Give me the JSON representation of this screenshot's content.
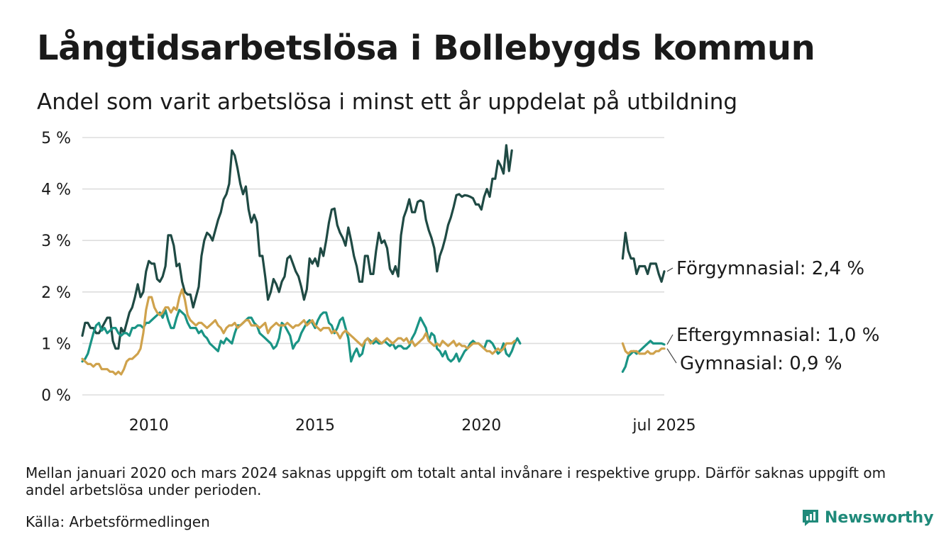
{
  "title": "Långtidsarbetslösa i Bollebygds kommun",
  "subtitle": "Andel som varit arbetslösa i minst ett år uppdelat på utbildning",
  "note": "Mellan januari 2020 och mars 2024 saknas uppgift om totalt antal invånare i respektive grupp. Därför saknas uppgift om andel arbetslösa under perioden.",
  "source": "Källa: Arbetsförmedlingen",
  "brand": "Newsworthy",
  "colors": {
    "forgymnasial": "#1f4a44",
    "eftergymnasial": "#1a9485",
    "gymnasial": "#cfa24c",
    "grid": "#dddddd"
  },
  "chart_data": {
    "type": "line",
    "x_unit": "month",
    "y_unit": "%",
    "ylim": [
      0,
      5
    ],
    "y_ticks": [
      0,
      1,
      2,
      3,
      4,
      5
    ],
    "y_tick_labels": [
      "0 %",
      "1 %",
      "2 %",
      "3 %",
      "4 %",
      "5 %"
    ],
    "x_ticks": [
      2010,
      2015,
      2020,
      2025.5
    ],
    "x_tick_labels": [
      "2010",
      "2015",
      "2020",
      "jul 2025"
    ],
    "grid": "horizontal",
    "series_start": 2008.0,
    "series_step": 0.08333,
    "gap": {
      "from": "2021-01",
      "to": "2024-03"
    },
    "series": [
      {
        "name": "Förgymnasial",
        "end_label": "Förgymnasial: 2,4 %",
        "color": "#1f4a44",
        "segments": [
          {
            "start": 2008.0,
            "values": [
              1.15,
              1.4,
              1.4,
              1.3,
              1.3,
              1.2,
              1.2,
              1.3,
              1.4,
              1.5,
              1.5,
              1.05,
              0.9,
              0.9,
              1.3,
              1.2,
              1.4,
              1.6,
              1.7,
              1.9,
              2.15,
              1.9,
              2.0,
              2.4,
              2.6,
              2.55,
              2.55,
              2.25,
              2.2,
              2.3,
              2.5,
              3.1,
              3.1,
              2.9,
              2.5,
              2.55,
              2.2,
              2.0,
              1.95,
              1.95,
              1.7,
              1.9,
              2.1,
              2.7,
              3.0,
              3.15,
              3.1,
              3.0,
              3.2,
              3.4,
              3.55,
              3.8,
              3.9,
              4.1,
              4.75,
              4.65,
              4.4,
              4.1,
              3.9,
              4.05,
              3.6,
              3.35,
              3.5,
              3.35,
              2.7,
              2.7,
              2.3,
              1.85,
              2.0,
              2.25,
              2.15,
              2.0,
              2.2,
              2.3,
              2.65,
              2.7,
              2.55,
              2.4,
              2.3,
              2.1,
              1.85,
              2.05,
              2.65,
              2.55,
              2.65,
              2.5,
              2.85,
              2.7,
              3.0,
              3.35,
              3.6,
              3.62,
              3.3,
              3.15,
              3.05,
              2.9,
              3.25,
              3.0,
              2.7,
              2.5,
              2.2,
              2.2,
              2.7,
              2.7,
              2.35,
              2.35,
              2.8,
              3.15,
              2.95,
              3.0,
              2.85,
              2.45,
              2.35,
              2.5,
              2.3,
              3.1,
              3.45,
              3.6,
              3.8,
              3.55,
              3.55,
              3.75,
              3.78,
              3.75,
              3.4,
              3.2,
              3.05,
              2.85,
              2.4,
              2.7,
              2.85,
              3.05,
              3.3,
              3.45,
              3.65,
              3.88,
              3.9,
              3.85,
              3.88,
              3.87,
              3.85,
              3.82,
              3.7,
              3.7,
              3.6,
              3.85,
              4.0,
              3.85,
              4.2,
              4.2,
              4.55,
              4.45,
              4.3,
              4.85,
              4.35,
              4.75
            ]
          },
          {
            "start": 2024.25,
            "values": [
              2.65,
              3.15,
              2.8,
              2.65,
              2.65,
              2.35,
              2.5,
              2.5,
              2.5,
              2.35,
              2.55,
              2.55,
              2.55,
              2.35,
              2.2,
              2.4
            ]
          }
        ]
      },
      {
        "name": "Eftergymnasial",
        "end_label": "Eftergymnasial: 1,0 %",
        "color": "#1a9485",
        "segments": [
          {
            "start": 2008.0,
            "values": [
              0.65,
              0.7,
              0.8,
              1.0,
              1.2,
              1.35,
              1.4,
              1.25,
              1.3,
              1.2,
              1.25,
              1.3,
              1.3,
              1.2,
              1.15,
              1.2,
              1.2,
              1.15,
              1.3,
              1.3,
              1.35,
              1.35,
              1.3,
              1.4,
              1.4,
              1.45,
              1.5,
              1.55,
              1.6,
              1.5,
              1.65,
              1.45,
              1.3,
              1.3,
              1.5,
              1.65,
              1.6,
              1.55,
              1.4,
              1.3,
              1.3,
              1.3,
              1.2,
              1.25,
              1.15,
              1.1,
              1.0,
              0.95,
              0.9,
              0.85,
              1.05,
              1.0,
              1.1,
              1.05,
              1.0,
              1.2,
              1.35,
              1.35,
              1.4,
              1.45,
              1.5,
              1.5,
              1.4,
              1.35,
              1.2,
              1.15,
              1.1,
              1.05,
              1.0,
              0.9,
              0.95,
              1.1,
              1.4,
              1.35,
              1.25,
              1.15,
              0.9,
              1.0,
              1.05,
              1.2,
              1.3,
              1.4,
              1.45,
              1.4,
              1.3,
              1.45,
              1.55,
              1.6,
              1.6,
              1.4,
              1.35,
              1.2,
              1.3,
              1.45,
              1.5,
              1.3,
              1.1,
              0.65,
              0.8,
              0.9,
              0.75,
              0.8,
              1.05,
              1.1,
              1.05,
              1.0,
              1.05,
              1.0,
              1.0,
              1.05,
              1.0,
              0.95,
              1.0,
              0.9,
              0.95,
              0.95,
              0.9,
              0.9,
              0.95,
              1.1,
              1.2,
              1.35,
              1.5,
              1.4,
              1.3,
              1.05,
              1.2,
              1.15,
              0.9,
              0.85,
              0.75,
              0.85,
              0.7,
              0.65,
              0.7,
              0.8,
              0.65,
              0.75,
              0.85,
              0.9,
              1.0,
              1.05,
              1.0,
              1.0,
              0.95,
              0.9,
              1.05,
              1.05,
              1.0,
              0.9,
              0.8,
              0.85,
              1.0,
              0.8,
              0.75,
              0.85,
              1.0,
              1.1,
              1.0
            ]
          },
          {
            "start": 2024.25,
            "values": [
              0.45,
              0.55,
              0.75,
              0.8,
              0.85,
              0.8,
              0.85,
              0.9,
              0.95,
              1.0,
              1.05,
              1.0,
              1.0,
              1.0,
              1.0,
              0.98
            ]
          }
        ]
      },
      {
        "name": "Gymnasial",
        "end_label": "Gymnasial: 0,9 %",
        "color": "#cfa24c",
        "segments": [
          {
            "start": 2008.0,
            "values": [
              0.7,
              0.65,
              0.6,
              0.6,
              0.55,
              0.6,
              0.6,
              0.5,
              0.5,
              0.5,
              0.45,
              0.45,
              0.4,
              0.45,
              0.4,
              0.5,
              0.65,
              0.7,
              0.7,
              0.75,
              0.8,
              0.9,
              1.2,
              1.65,
              1.9,
              1.9,
              1.7,
              1.6,
              1.55,
              1.6,
              1.7,
              1.7,
              1.6,
              1.7,
              1.65,
              1.9,
              2.05,
              1.85,
              1.55,
              1.45,
              1.4,
              1.35,
              1.4,
              1.4,
              1.35,
              1.3,
              1.35,
              1.4,
              1.45,
              1.35,
              1.3,
              1.2,
              1.3,
              1.35,
              1.35,
              1.4,
              1.3,
              1.35,
              1.4,
              1.45,
              1.45,
              1.35,
              1.35,
              1.35,
              1.3,
              1.35,
              1.4,
              1.2,
              1.3,
              1.35,
              1.4,
              1.35,
              1.35,
              1.35,
              1.4,
              1.35,
              1.3,
              1.35,
              1.35,
              1.4,
              1.45,
              1.35,
              1.4,
              1.45,
              1.35,
              1.3,
              1.25,
              1.3,
              1.3,
              1.3,
              1.2,
              1.25,
              1.2,
              1.1,
              1.2,
              1.25,
              1.2,
              1.15,
              1.1,
              1.05,
              1.0,
              0.95,
              1.05,
              1.1,
              1.0,
              1.05,
              1.1,
              1.05,
              1.0,
              1.05,
              1.1,
              1.05,
              1.0,
              1.05,
              1.1,
              1.1,
              1.05,
              1.1,
              1.0,
              1.05,
              0.95,
              1.0,
              1.05,
              1.1,
              1.2,
              1.05,
              1.0,
              0.95,
              1.0,
              0.95,
              1.05,
              1.0,
              0.95,
              1.0,
              1.05,
              0.95,
              1.0,
              0.95,
              0.95,
              0.9,
              0.95,
              1.0,
              1.0,
              1.0,
              0.95,
              0.9,
              0.85,
              0.85,
              0.8,
              0.85,
              0.9,
              0.85,
              0.9,
              1.0,
              1.0,
              1.0,
              1.05
            ]
          },
          {
            "start": 2024.25,
            "values": [
              1.0,
              0.85,
              0.8,
              0.85,
              0.85,
              0.85,
              0.8,
              0.8,
              0.8,
              0.85,
              0.8,
              0.8,
              0.85,
              0.85,
              0.9,
              0.9
            ]
          }
        ]
      }
    ]
  }
}
